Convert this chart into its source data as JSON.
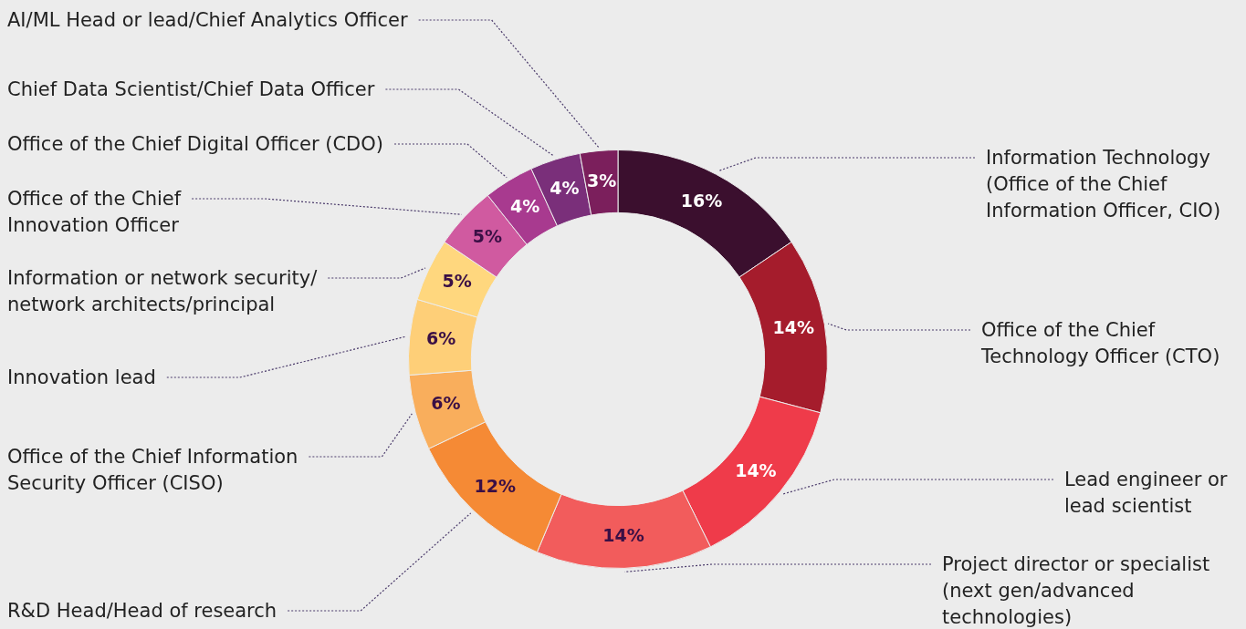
{
  "chart_data": {
    "type": "donut",
    "categories": [
      "Information Technology (Office of the Chief Information Officer, CIO)",
      "Office of the Chief Technology Officer (CTO)",
      "Lead engineer or lead scientist",
      "Project director or specialist (next gen/advanced technologies)",
      "R&D Head/Head of research",
      "Office of the Chief Information Security Officer (CISO)",
      "Innovation lead",
      "Information or network security/ network architects/principal",
      "Office of the Chief Innovation Officer",
      "Office of the Chief Digital Officer (CDO)",
      "Chief Data Scientist/Chief Data Officer",
      "AI/ML Head or lead/Chief Analytics Officer"
    ],
    "values": [
      16,
      14,
      14,
      14,
      12,
      6,
      6,
      5,
      5,
      4,
      4,
      3
    ],
    "value_labels": [
      "16%",
      "14%",
      "14%",
      "14%",
      "12%",
      "6%",
      "6%",
      "5%",
      "5%",
      "4%",
      "4%",
      "3%"
    ],
    "colors": [
      "#3b0f2e",
      "#a51c2c",
      "#ef3b4a",
      "#f25c5c",
      "#f58a35",
      "#f9ae5c",
      "#fecf78",
      "#ffd77e",
      "#d05aa0",
      "#a83a8f",
      "#7a2f7a",
      "#7b1f5c"
    ],
    "legend": false
  }
}
